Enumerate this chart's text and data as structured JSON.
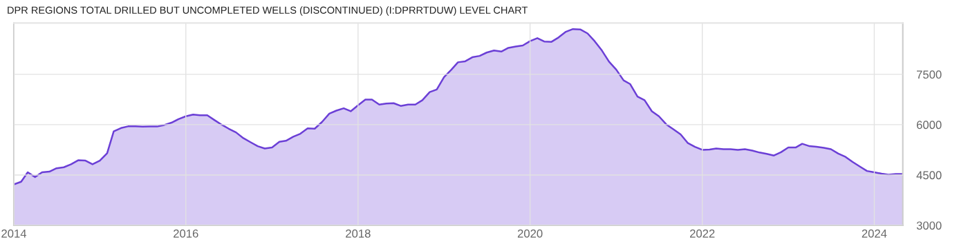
{
  "chart_data": {
    "type": "area",
    "title": "DPR REGIONS TOTAL DRILLED BUT UNCOMPLETED WELLS (DISCONTINUED) (I:DPRRTDUW) LEVEL CHART",
    "x": [
      "2014-01",
      "2014-02",
      "2014-03",
      "2014-04",
      "2014-05",
      "2014-06",
      "2014-07",
      "2014-08",
      "2014-09",
      "2014-10",
      "2014-11",
      "2014-12",
      "2015-01",
      "2015-02",
      "2015-03",
      "2015-04",
      "2015-05",
      "2015-06",
      "2015-07",
      "2015-08",
      "2015-09",
      "2015-10",
      "2015-11",
      "2015-12",
      "2016-01",
      "2016-02",
      "2016-03",
      "2016-04",
      "2016-05",
      "2016-06",
      "2016-07",
      "2016-08",
      "2016-09",
      "2016-10",
      "2016-11",
      "2016-12",
      "2017-01",
      "2017-02",
      "2017-03",
      "2017-04",
      "2017-05",
      "2017-06",
      "2017-07",
      "2017-08",
      "2017-09",
      "2017-10",
      "2017-11",
      "2017-12",
      "2018-01",
      "2018-02",
      "2018-03",
      "2018-04",
      "2018-05",
      "2018-06",
      "2018-07",
      "2018-08",
      "2018-09",
      "2018-10",
      "2018-11",
      "2018-12",
      "2019-01",
      "2019-02",
      "2019-03",
      "2019-04",
      "2019-05",
      "2019-06",
      "2019-07",
      "2019-08",
      "2019-09",
      "2019-10",
      "2019-11",
      "2019-12",
      "2020-01",
      "2020-02",
      "2020-03",
      "2020-04",
      "2020-05",
      "2020-06",
      "2020-07",
      "2020-08",
      "2020-09",
      "2020-10",
      "2020-11",
      "2020-12",
      "2021-01",
      "2021-02",
      "2021-03",
      "2021-04",
      "2021-05",
      "2021-06",
      "2021-07",
      "2021-08",
      "2021-09",
      "2021-10",
      "2021-11",
      "2021-12",
      "2022-01",
      "2022-02",
      "2022-03",
      "2022-04",
      "2022-05",
      "2022-06",
      "2022-07",
      "2022-08",
      "2022-09",
      "2022-10",
      "2022-11",
      "2022-12",
      "2023-01",
      "2023-02",
      "2023-03",
      "2023-04",
      "2023-05",
      "2023-06",
      "2023-07",
      "2023-08",
      "2023-09",
      "2023-10",
      "2023-11",
      "2023-12",
      "2024-01",
      "2024-02",
      "2024-03",
      "2024-04",
      "2024-05"
    ],
    "series": [
      {
        "color": "#6b3fd6",
        "values": [
          4220,
          4300,
          4580,
          4440,
          4580,
          4600,
          4700,
          4730,
          4820,
          4940,
          4930,
          4820,
          4930,
          5150,
          5800,
          5900,
          5950,
          5950,
          5940,
          5945,
          5945,
          5990,
          6060,
          6165,
          6250,
          6300,
          6280,
          6280,
          6140,
          6000,
          5880,
          5770,
          5600,
          5480,
          5360,
          5290,
          5320,
          5490,
          5520,
          5640,
          5730,
          5890,
          5880,
          6080,
          6330,
          6420,
          6490,
          6400,
          6580,
          6750,
          6750,
          6600,
          6630,
          6640,
          6560,
          6600,
          6600,
          6730,
          6970,
          7050,
          7420,
          7640,
          7860,
          7890,
          8010,
          8050,
          8150,
          8210,
          8180,
          8290,
          8330,
          8360,
          8490,
          8580,
          8480,
          8470,
          8600,
          8770,
          8850,
          8840,
          8720,
          8490,
          8210,
          7880,
          7640,
          7320,
          7210,
          6840,
          6730,
          6400,
          6250,
          6010,
          5860,
          5710,
          5450,
          5340,
          5250,
          5260,
          5290,
          5270,
          5270,
          5250,
          5270,
          5230,
          5170,
          5130,
          5080,
          5180,
          5320,
          5320,
          5430,
          5360,
          5340,
          5310,
          5270,
          5140,
          5040,
          4890,
          4750,
          4620,
          4580,
          4540,
          4510,
          4530,
          4530
        ]
      }
    ],
    "xlim": [
      "2014-01",
      "2024-05"
    ],
    "xticks": [
      {
        "value": "2014-01",
        "label": "2014"
      },
      {
        "value": "2016-01",
        "label": "2016"
      },
      {
        "value": "2018-01",
        "label": "2018"
      },
      {
        "value": "2020-01",
        "label": "2020"
      },
      {
        "value": "2022-01",
        "label": "2022"
      },
      {
        "value": "2024-01",
        "label": "2024"
      }
    ],
    "ylim": [
      3000,
      9030
    ],
    "yticks": [
      3000,
      4500,
      6000,
      7500
    ],
    "grid": true
  }
}
